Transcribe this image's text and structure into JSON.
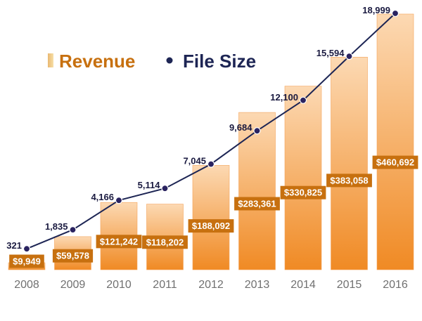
{
  "chart_data": {
    "type": "bar",
    "categories": [
      "2008",
      "2009",
      "2010",
      "2011",
      "2012",
      "2013",
      "2014",
      "2015",
      "2016"
    ],
    "series": [
      {
        "name": "Revenue",
        "type": "bar",
        "values": [
          9949,
          59578,
          121242,
          118202,
          188092,
          283361,
          330825,
          383058,
          460692
        ],
        "labels": [
          "$9,949",
          "$59,578",
          "$121,242",
          "$118,202",
          "$188,092",
          "$283,361",
          "$330,825",
          "$383,058",
          "$460,692"
        ]
      },
      {
        "name": "File Size",
        "type": "line",
        "values": [
          321,
          1835,
          4166,
          5114,
          7045,
          9684,
          12100,
          15594,
          18999
        ],
        "labels": [
          "321",
          "1,835",
          "4,166",
          "5,114",
          "7,045",
          "9,684",
          "12,100",
          "15,594",
          "18,999"
        ]
      }
    ],
    "title": "",
    "xlabel": "",
    "ylabel": "",
    "ylim_bar": [
      0,
      460692
    ],
    "ylim_line": [
      0,
      18999
    ],
    "grid": false,
    "legend": {
      "placement": "top-left",
      "entries": [
        "Revenue",
        "File Size"
      ]
    },
    "colors": {
      "bar_top": "#fcd9b3",
      "bar_bottom": "#f08a24",
      "bar_label_box": "#c7700f",
      "line": "#1d2554",
      "marker": "#2a2360",
      "legend_revenue_text": "#c7700f",
      "legend_filesize_text": "#1d2554"
    }
  }
}
